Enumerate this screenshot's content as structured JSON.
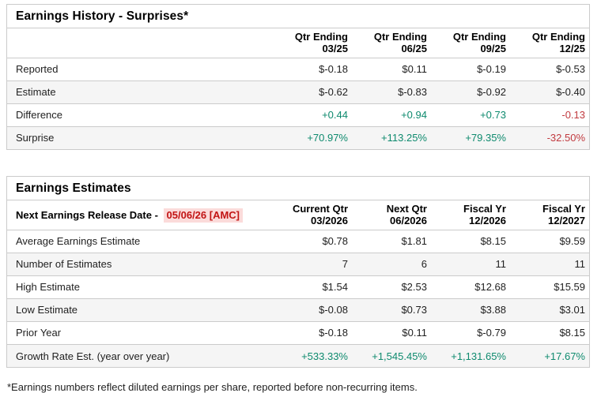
{
  "colors": {
    "border": "#cbcbcb",
    "rowalt": "#f5f5f5",
    "green": "#0e8a6e",
    "red": "#c13a3f",
    "date_red": "#c21414",
    "date_bg": "#fbdbda"
  },
  "earnings_history": {
    "title": "Earnings History - Surprises*",
    "columns": [
      {
        "top": "Qtr Ending",
        "bottom": "03/25"
      },
      {
        "top": "Qtr Ending",
        "bottom": "06/25"
      },
      {
        "top": "Qtr Ending",
        "bottom": "09/25"
      },
      {
        "top": "Qtr Ending",
        "bottom": "12/25"
      }
    ],
    "rows": [
      {
        "label": "Reported",
        "values": [
          "$-0.18",
          "$0.11",
          "$-0.19",
          "$-0.53"
        ],
        "styles": [
          "",
          "",
          "",
          ""
        ]
      },
      {
        "label": "Estimate",
        "values": [
          "$-0.62",
          "$-0.83",
          "$-0.92",
          "$-0.40"
        ],
        "styles": [
          "",
          "",
          "",
          ""
        ]
      },
      {
        "label": "Difference",
        "values": [
          "+0.44",
          "+0.94",
          "+0.73",
          "-0.13"
        ],
        "styles": [
          "pos",
          "pos",
          "pos",
          "neg"
        ]
      },
      {
        "label": "Surprise",
        "values": [
          "+70.97%",
          "+113.25%",
          "+79.35%",
          "-32.50%"
        ],
        "styles": [
          "pos",
          "pos",
          "pos",
          "neg"
        ]
      }
    ]
  },
  "earnings_estimates": {
    "title": "Earnings Estimates",
    "release_label": "Next Earnings Release Date - ",
    "release_date": "05/06/26 [AMC]",
    "columns": [
      {
        "top": "Current Qtr",
        "bottom": "03/2026"
      },
      {
        "top": "Next Qtr",
        "bottom": "06/2026"
      },
      {
        "top": "Fiscal Yr",
        "bottom": "12/2026"
      },
      {
        "top": "Fiscal Yr",
        "bottom": "12/2027"
      }
    ],
    "rows": [
      {
        "label": "Average Earnings Estimate",
        "values": [
          "$0.78",
          "$1.81",
          "$8.15",
          "$9.59"
        ],
        "styles": [
          "",
          "",
          "",
          ""
        ]
      },
      {
        "label": "Number of Estimates",
        "values": [
          "7",
          "6",
          "11",
          "11"
        ],
        "styles": [
          "",
          "",
          "",
          ""
        ]
      },
      {
        "label": "High Estimate",
        "values": [
          "$1.54",
          "$2.53",
          "$12.68",
          "$15.59"
        ],
        "styles": [
          "",
          "",
          "",
          ""
        ]
      },
      {
        "label": "Low Estimate",
        "values": [
          "$-0.08",
          "$0.73",
          "$3.88",
          "$3.01"
        ],
        "styles": [
          "",
          "",
          "",
          ""
        ]
      },
      {
        "label": "Prior Year",
        "values": [
          "$-0.18",
          "$0.11",
          "$-0.79",
          "$8.15"
        ],
        "styles": [
          "",
          "",
          "",
          ""
        ]
      },
      {
        "label": "Growth Rate Est. (year over year)",
        "values": [
          "+533.33%",
          "+1,545.45%",
          "+1,131.65%",
          "+17.67%"
        ],
        "styles": [
          "pos",
          "pos",
          "pos",
          "pos"
        ]
      }
    ]
  },
  "footnote": "*Earnings numbers reflect diluted earnings per share, reported before non-recurring items."
}
